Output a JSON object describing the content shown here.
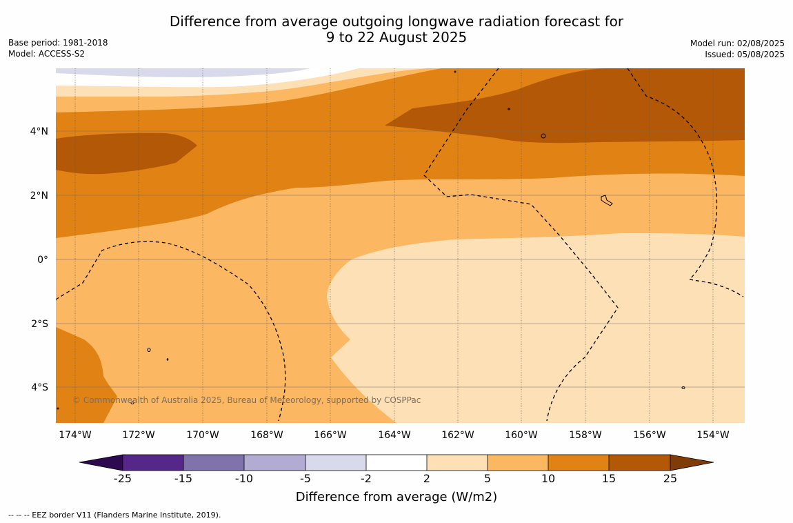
{
  "title": {
    "line1": "Difference from average outgoing longwave radiation forecast for",
    "line2": "9 to 22 August 2025"
  },
  "meta_left": {
    "base_period": "Base period: 1981-2018",
    "model": "Model: ACCESS-S2"
  },
  "meta_right": {
    "model_run": "Model run: 02/08/2025",
    "issued": "Issued: 05/08/2025"
  },
  "map": {
    "lat_labels": [
      "4°N",
      "2°N",
      "0°",
      "2°S",
      "4°S"
    ],
    "lon_labels": [
      "174°W",
      "172°W",
      "170°W",
      "168°W",
      "166°W",
      "164°W",
      "162°W",
      "160°W",
      "158°W",
      "156°W",
      "154°W"
    ],
    "copyright": "© Commonwealth of Australia 2025, Bureau of Meteorology, supported by COSPPac"
  },
  "colorbar": {
    "label": "Difference from average (W/m2)",
    "ticks": [
      "-25",
      "-15",
      "-10",
      "-5",
      "-2",
      "2",
      "5",
      "10",
      "15",
      "25"
    ],
    "colors": {
      "lt_minus25": "#2d0a50",
      "minus25_to_minus15": "#542788",
      "minus15_to_minus10": "#8073ac",
      "minus10_to_minus5": "#b2abd2",
      "minus5_to_minus2": "#d8daeb",
      "minus2_to_2": "#ffffff",
      "2_to_5": "#fee0b6",
      "5_to_10": "#fbb762",
      "10_to_15": "#e08214",
      "15_to_25": "#b35806",
      "gt_25": "#7f3b08"
    }
  },
  "footnote": "--  --  -- EEZ border V11 (Flanders Marine Institute, 2019)."
}
